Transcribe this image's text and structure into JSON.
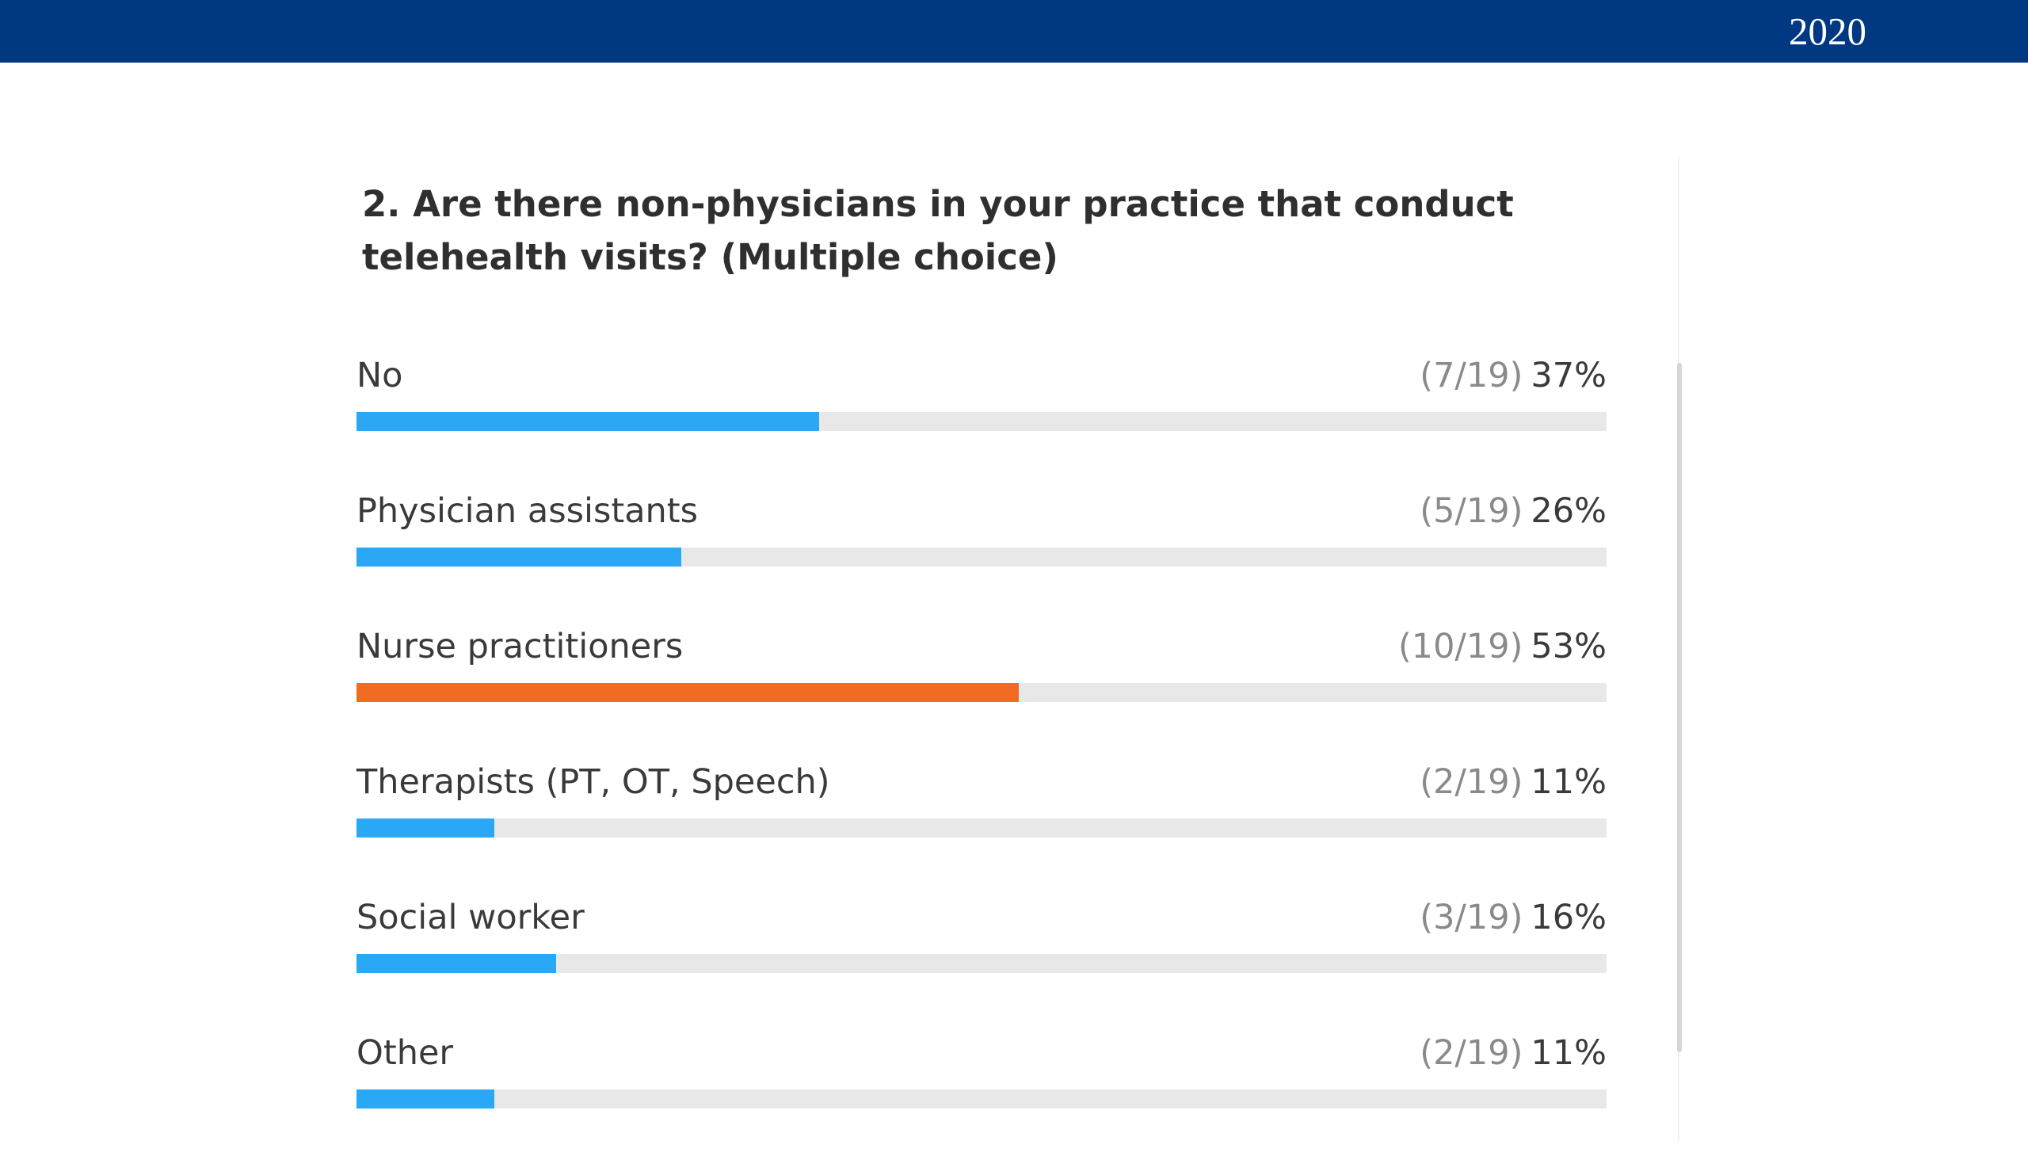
{
  "header": {
    "year": "2020",
    "background_color": "#003882"
  },
  "poll": {
    "question": "2. Are there non-physicians in your practice that conduct telehealth visits? (Multiple choice)",
    "colors": {
      "bar_default": "#2aa7f5",
      "bar_highlight": "#f26b22",
      "track": "#e8e8e8"
    },
    "options": [
      {
        "label": "No",
        "count": "(7/19)",
        "percent": "37%",
        "fraction": 0.37,
        "highlight": false
      },
      {
        "label": "Physician assistants",
        "count": "(5/19)",
        "percent": "26%",
        "fraction": 0.26,
        "highlight": false
      },
      {
        "label": "Nurse practitioners",
        "count": "(10/19)",
        "percent": "53%",
        "fraction": 0.53,
        "highlight": true
      },
      {
        "label": "Therapists (PT, OT, Speech)",
        "count": "(2/19)",
        "percent": "11%",
        "fraction": 0.11,
        "highlight": false
      },
      {
        "label": "Social worker",
        "count": "(3/19)",
        "percent": "16%",
        "fraction": 0.16,
        "highlight": false
      },
      {
        "label": "Other",
        "count": "(2/19)",
        "percent": "11%",
        "fraction": 0.11,
        "highlight": false
      }
    ]
  }
}
